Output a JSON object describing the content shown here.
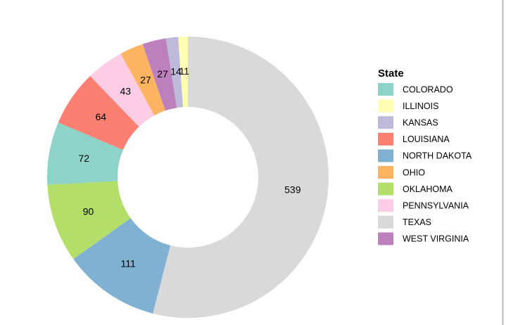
{
  "chart_data": {
    "type": "donut",
    "legend_title": "State",
    "categories": [
      "TEXAS",
      "NORTH DAKOTA",
      "OKLAHOMA",
      "COLORADO",
      "LOUISIANA",
      "PENNSYLVANIA",
      "OHIO",
      "WEST VIRGINIA",
      "KANSAS",
      "ILLINOIS"
    ],
    "values": [
      539,
      111,
      90,
      72,
      64,
      43,
      27,
      27,
      14,
      11
    ],
    "colors": [
      "#D9D9D9",
      "#80B1D3",
      "#B3DE69",
      "#8DD3C7",
      "#FB8072",
      "#FCCDE5",
      "#FDB462",
      "#BC80BD",
      "#BEBADA",
      "#FFFFB3"
    ]
  }
}
